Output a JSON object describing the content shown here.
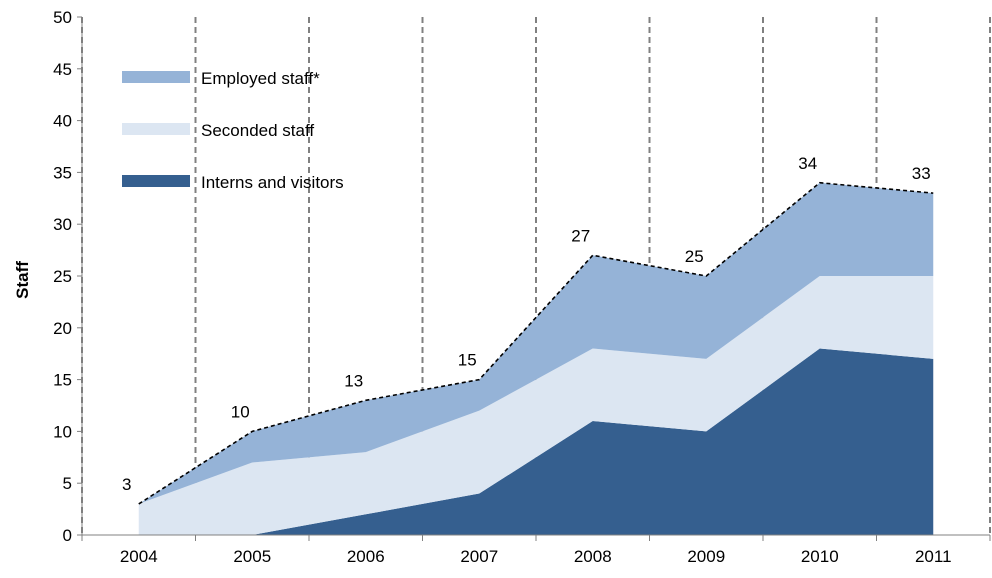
{
  "chart_data": {
    "type": "area",
    "stacked": true,
    "xlabel": "",
    "ylabel": "Staff",
    "ylim": [
      0,
      50
    ],
    "yticks": [
      0,
      5,
      10,
      15,
      20,
      25,
      30,
      35,
      40,
      45,
      50
    ],
    "categories": [
      "2004",
      "2005",
      "2006",
      "2007",
      "2008",
      "2009",
      "2010",
      "2011"
    ],
    "series": [
      {
        "name": "Interns and visitors",
        "color": "#355f8f",
        "values": [
          0,
          0,
          2,
          4,
          11,
          10,
          18,
          17
        ]
      },
      {
        "name": "Seconded staff",
        "color": "#dce6f2",
        "values": [
          3,
          7,
          6,
          8,
          7,
          7,
          7,
          8
        ]
      },
      {
        "name": "Employed staff*",
        "color": "#95b3d7",
        "values": [
          0,
          3,
          5,
          3,
          9,
          8,
          9,
          8
        ]
      }
    ],
    "totals": [
      3,
      10,
      13,
      15,
      27,
      25,
      34,
      33
    ],
    "total_line": {
      "style": "dashed",
      "color": "#000000"
    },
    "vertical_separators": {
      "style": "dashed",
      "color": "#808080"
    },
    "legend": {
      "placement": "top-left",
      "order": [
        "Employed staff*",
        "Seconded staff",
        "Interns and visitors"
      ]
    },
    "grid": false
  }
}
